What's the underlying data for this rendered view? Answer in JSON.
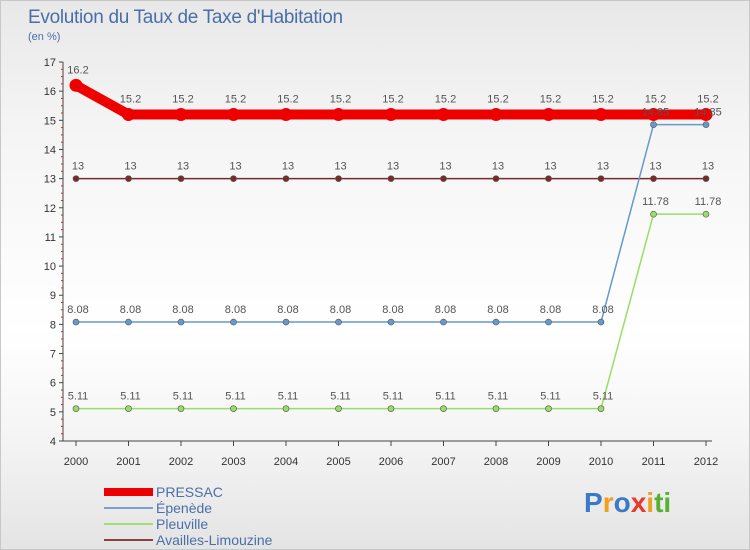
{
  "header": {
    "title": "Evolution du Taux de Taxe d'Habitation",
    "subtitle": "(en %)"
  },
  "chart_data": {
    "type": "line",
    "title": "Evolution du Taux de Taxe d'Habitation",
    "ylabel": "(en %)",
    "xlabel": "",
    "x": [
      "2000",
      "2001",
      "2002",
      "2003",
      "2004",
      "2005",
      "2006",
      "2007",
      "2008",
      "2009",
      "2010",
      "2011",
      "2012"
    ],
    "ylim": [
      4,
      17
    ],
    "yticks": [
      4,
      5,
      6,
      7,
      8,
      9,
      10,
      11,
      12,
      13,
      14,
      15,
      16,
      17
    ],
    "grid": false,
    "legend_position": "bottom-left",
    "series": [
      {
        "name": "PRESSAC",
        "color": "#ee0000",
        "values": [
          16.2,
          15.2,
          15.2,
          15.2,
          15.2,
          15.2,
          15.2,
          15.2,
          15.2,
          15.2,
          15.2,
          15.2,
          15.2
        ],
        "labels": [
          "16.2",
          "15.2",
          "15.2",
          "15.2",
          "15.2",
          "15.2",
          "15.2",
          "15.2",
          "15.2",
          "15.2",
          "15.2",
          "15.2",
          "15.2"
        ]
      },
      {
        "name": "Épenède",
        "color": "#6699cc",
        "values": [
          8.08,
          8.08,
          8.08,
          8.08,
          8.08,
          8.08,
          8.08,
          8.08,
          8.08,
          8.08,
          8.08,
          14.85,
          14.85
        ],
        "labels": [
          "8.08",
          "8.08",
          "8.08",
          "8.08",
          "8.08",
          "8.08",
          "8.08",
          "8.08",
          "8.08",
          "8.08",
          "8.08",
          "14.85",
          "14.85"
        ]
      },
      {
        "name": "Pleuville",
        "color": "#99dd66",
        "values": [
          5.11,
          5.11,
          5.11,
          5.11,
          5.11,
          5.11,
          5.11,
          5.11,
          5.11,
          5.11,
          5.11,
          11.78,
          11.78
        ],
        "labels": [
          "5.11",
          "5.11",
          "5.11",
          "5.11",
          "5.11",
          "5.11",
          "5.11",
          "5.11",
          "5.11",
          "5.11",
          "5.11",
          "11.78",
          "11.78"
        ]
      },
      {
        "name": "Availles-Limouzine",
        "color": "#7a2a2a",
        "values": [
          13,
          13,
          13,
          13,
          13,
          13,
          13,
          13,
          13,
          13,
          13,
          13,
          13
        ],
        "labels": [
          "13",
          "13",
          "13",
          "13",
          "13",
          "13",
          "13",
          "13",
          "13",
          "13",
          "13",
          "13",
          "13"
        ]
      }
    ]
  },
  "brand": {
    "letters": [
      "P",
      "r",
      "o",
      "x",
      "i",
      "t",
      "i"
    ],
    "colors": [
      "#3a78c8",
      "#f0a020",
      "#3a78c8",
      "#e83a2a",
      "#f0a020",
      "#58b030",
      "#58b030"
    ]
  }
}
